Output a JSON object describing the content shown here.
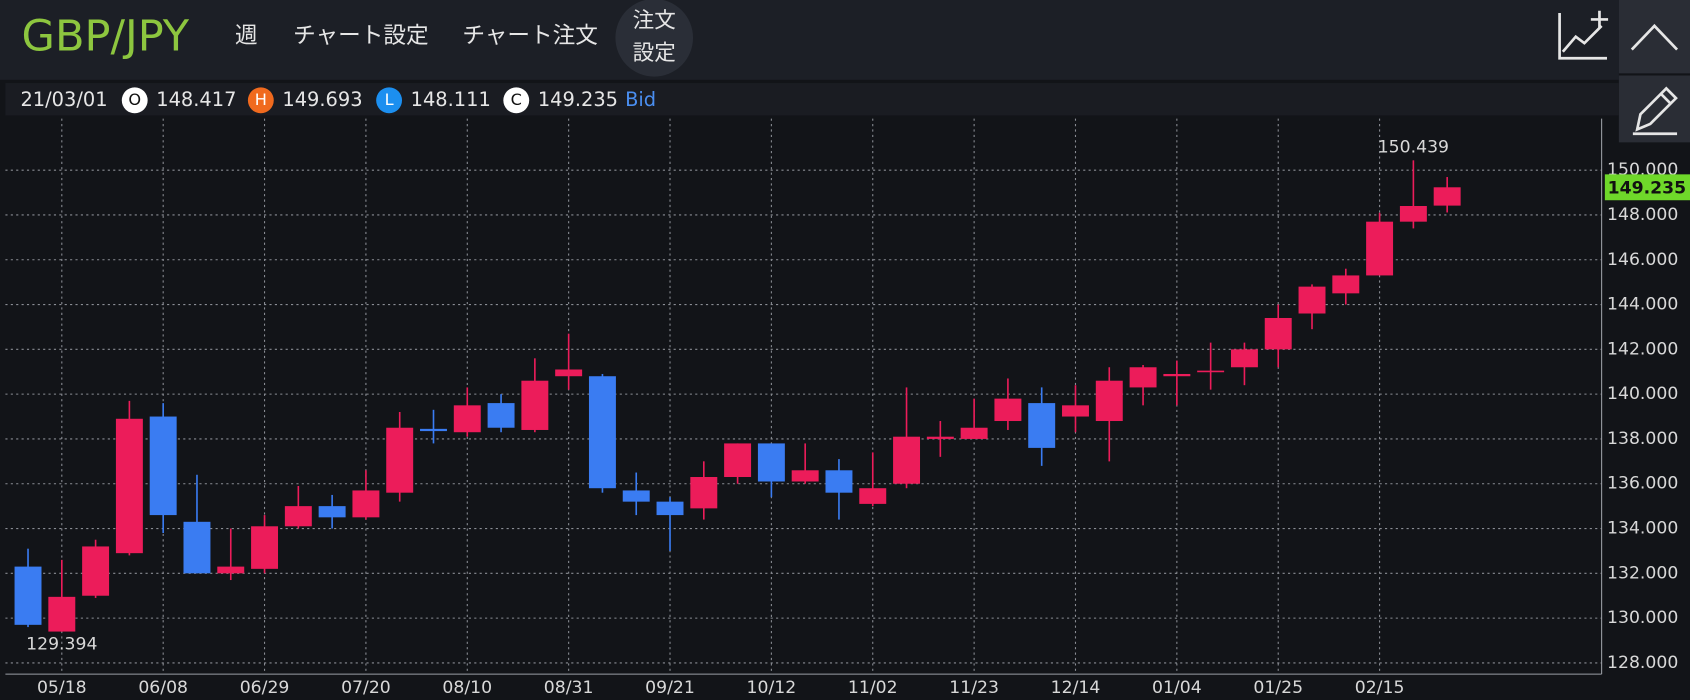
{
  "header": {
    "title": "GBP/JPY",
    "period": "週",
    "menu": [
      "チャート設定",
      "チャート注文"
    ],
    "order_settings": [
      "注文",
      "設定"
    ]
  },
  "info": {
    "date": "21/03/01",
    "labels": [
      "O",
      "H",
      "L",
      "C"
    ],
    "quote": "Bid"
  },
  "chart_data": {
    "type": "candlestick",
    "categories": [
      null,
      "05/18",
      null,
      null,
      "06/08",
      null,
      null,
      "06/29",
      null,
      null,
      "07/20",
      null,
      null,
      "08/10",
      null,
      null,
      "08/31",
      null,
      null,
      "09/21",
      null,
      null,
      "10/12",
      null,
      null,
      "11/02",
      null,
      null,
      "11/23",
      null,
      null,
      "12/14",
      null,
      null,
      "01/04",
      null,
      null,
      "01/25",
      null,
      null,
      "02/15",
      null,
      null
    ],
    "open": [
      132.3,
      129.4,
      131.0,
      132.9,
      139.0,
      134.3,
      132.0,
      132.2,
      134.1,
      135.0,
      134.5,
      135.6,
      138.45,
      138.3,
      139.6,
      138.4,
      140.8,
      140.8,
      135.7,
      135.2,
      134.9,
      136.3,
      137.8,
      136.1,
      136.6,
      135.1,
      136.0,
      138.0,
      138.0,
      138.8,
      139.6,
      139.0,
      138.8,
      140.3,
      140.8,
      141.0,
      141.2,
      142.0,
      143.6,
      144.5,
      145.3,
      147.7,
      148.417
    ],
    "high": [
      133.1,
      132.6,
      133.5,
      139.7,
      139.6,
      136.4,
      134.0,
      134.6,
      135.9,
      135.5,
      136.6,
      139.2,
      139.3,
      140.3,
      140.0,
      141.6,
      142.7,
      140.9,
      136.5,
      135.4,
      137.0,
      137.8,
      137.8,
      137.8,
      137.1,
      137.4,
      140.3,
      138.8,
      139.8,
      140.7,
      140.3,
      140.4,
      141.2,
      141.3,
      141.5,
      142.3,
      142.3,
      144.0,
      144.9,
      145.6,
      148.1,
      150.439,
      149.693
    ],
    "low": [
      129.6,
      129.394,
      130.9,
      132.8,
      133.8,
      132.0,
      131.7,
      132.0,
      134.0,
      134.0,
      134.4,
      135.2,
      137.8,
      138.1,
      138.3,
      138.3,
      140.2,
      135.6,
      134.6,
      133.0,
      134.4,
      136.0,
      135.4,
      136.0,
      134.4,
      135.0,
      135.8,
      137.2,
      138.0,
      138.4,
      136.8,
      138.3,
      137.0,
      139.5,
      139.5,
      140.2,
      140.4,
      141.2,
      142.9,
      144.0,
      145.3,
      147.4,
      148.111
    ],
    "close": [
      129.7,
      130.95,
      133.2,
      138.9,
      134.6,
      132.0,
      132.3,
      134.1,
      135.0,
      134.5,
      135.7,
      138.5,
      138.35,
      139.5,
      138.5,
      140.6,
      141.1,
      135.8,
      135.2,
      134.6,
      136.3,
      137.8,
      136.1,
      136.6,
      135.6,
      135.8,
      138.1,
      138.1,
      138.5,
      139.8,
      137.6,
      139.5,
      140.6,
      141.2,
      140.9,
      141.05,
      142.0,
      143.4,
      144.8,
      145.3,
      147.7,
      148.4,
      149.235
    ],
    "up_color": "#ec1c5a",
    "down_color": "#3a7cf2",
    "ylim": [
      127.5,
      152.3
    ],
    "yticks": [
      {
        "value": 128,
        "label": "128.000"
      },
      {
        "value": 130,
        "label": "130.000"
      },
      {
        "value": 132,
        "label": "132.000"
      },
      {
        "value": 134,
        "label": "134.000"
      },
      {
        "value": 136,
        "label": "136.000"
      },
      {
        "value": 138,
        "label": "138.000"
      },
      {
        "value": 140,
        "label": "140.000"
      },
      {
        "value": 142,
        "label": "142.000"
      },
      {
        "value": 144,
        "label": "144.000"
      },
      {
        "value": 146,
        "label": "146.000"
      },
      {
        "value": 148,
        "label": "148.000"
      },
      {
        "value": 150,
        "label": "150.000"
      }
    ],
    "grid": true,
    "price_tag_color": "#6fd82a"
  }
}
